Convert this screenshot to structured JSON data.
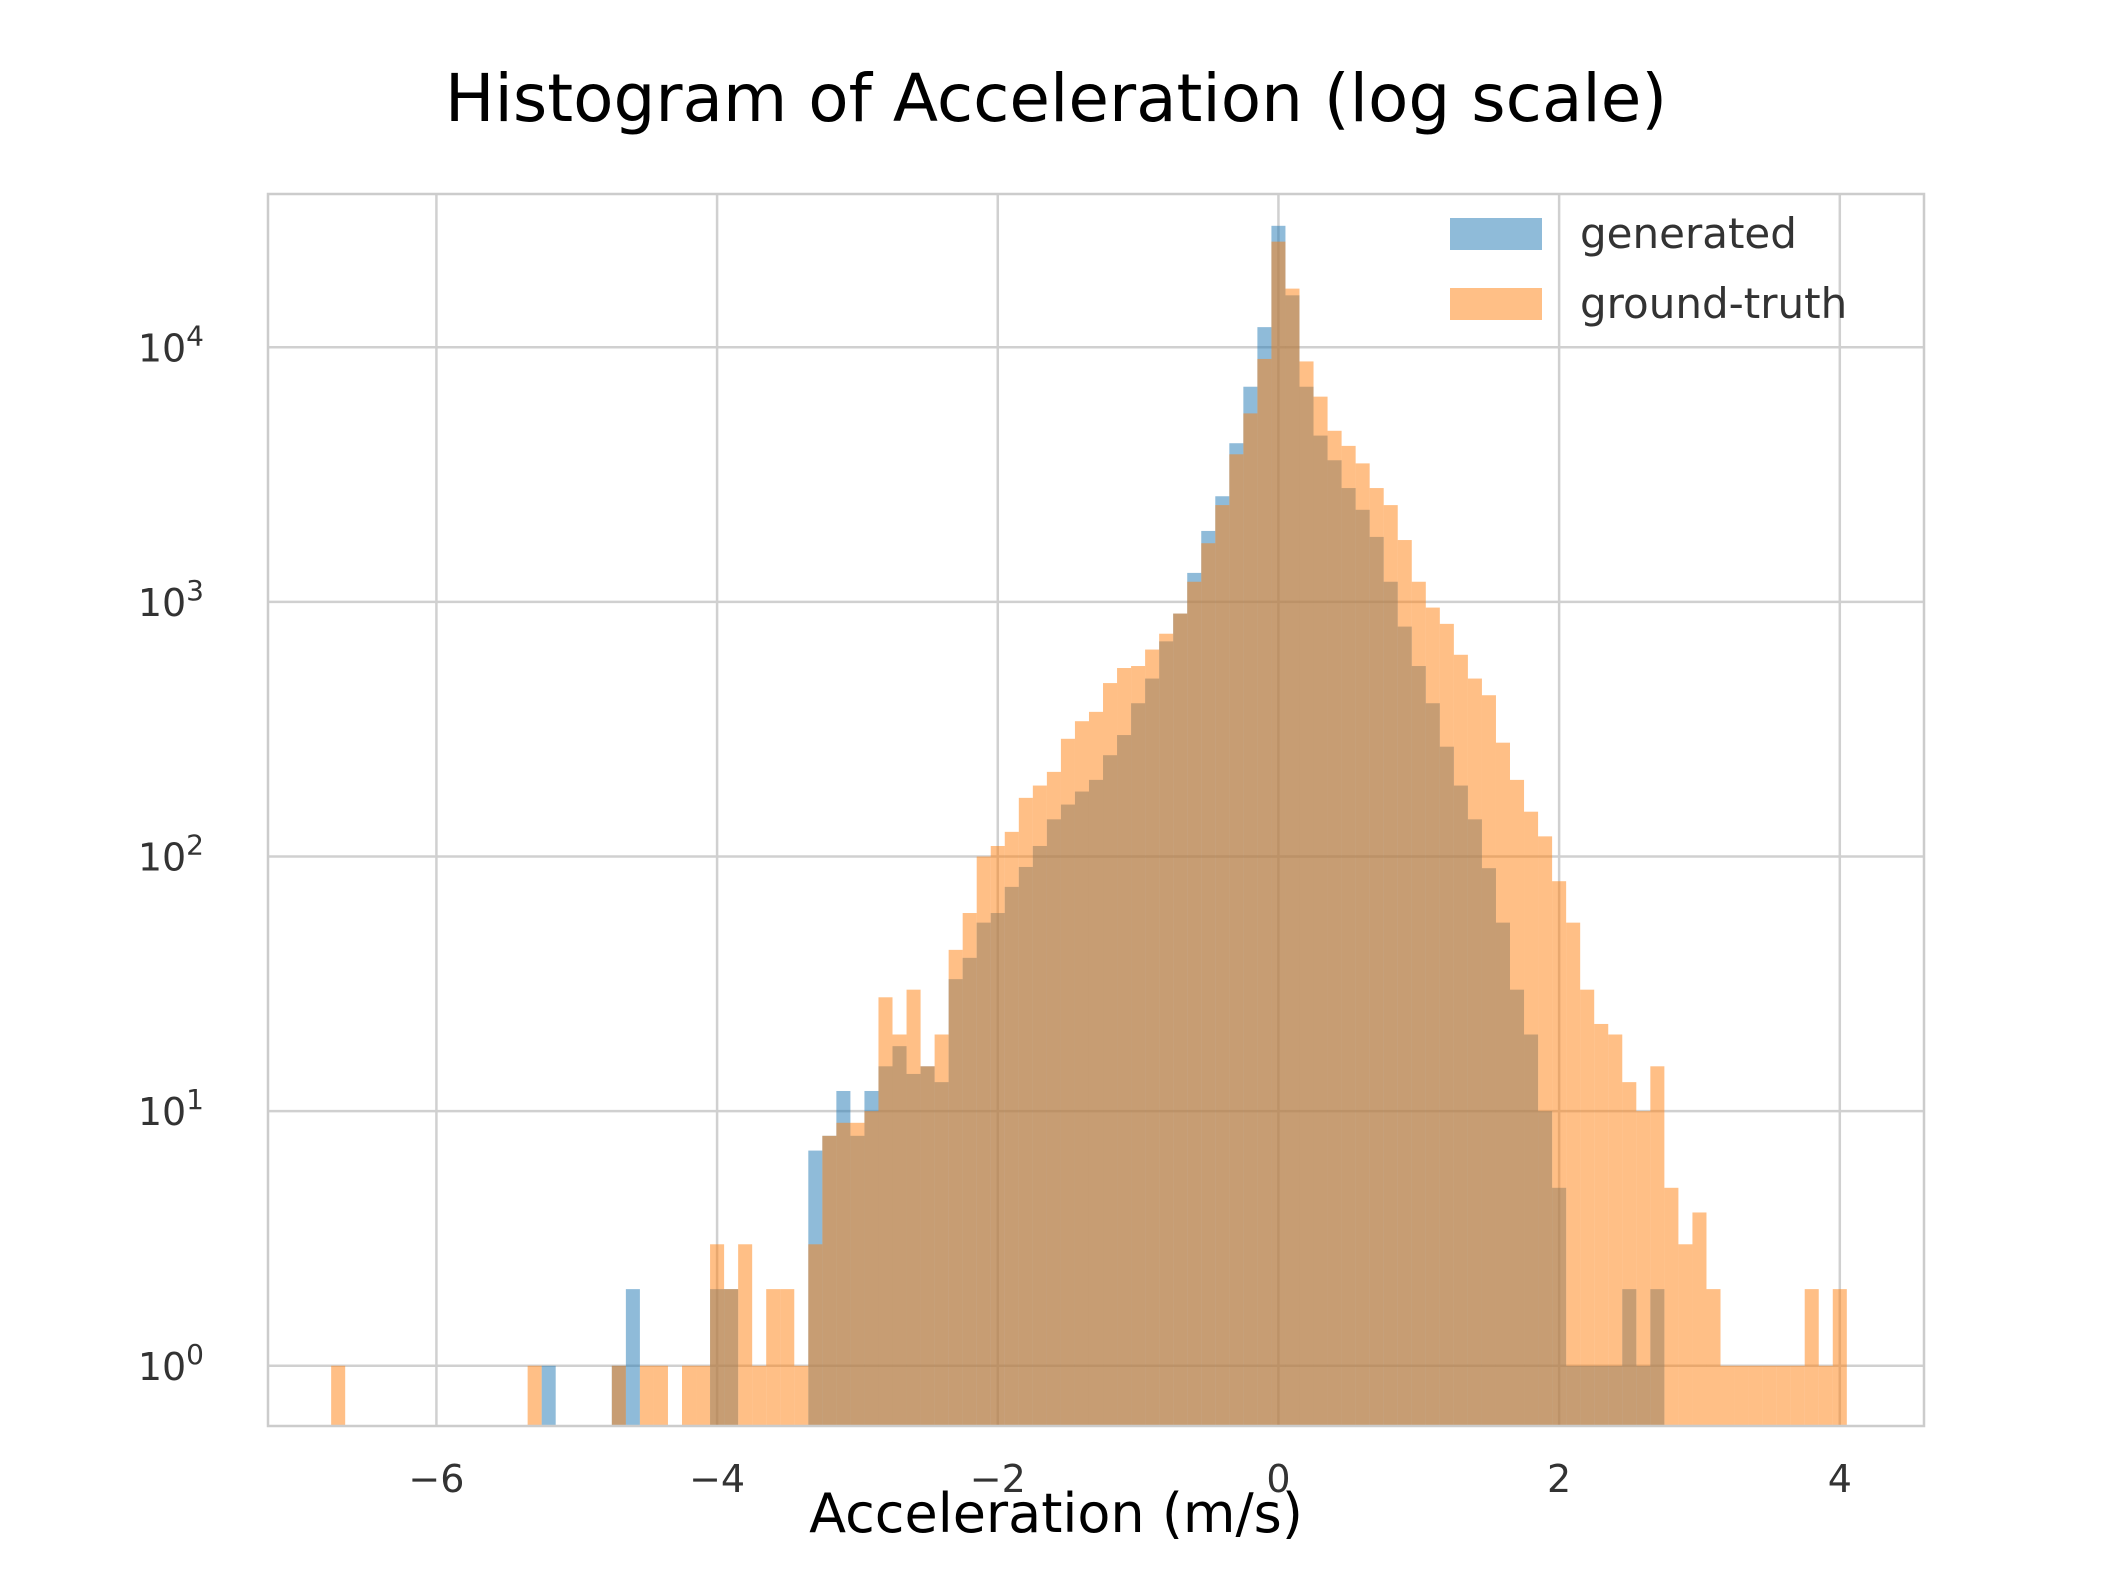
{
  "chart_data": {
    "type": "bar",
    "title": "Histogram of Acceleration (log scale)",
    "xlabel": "Acceleration (m/s)",
    "ylabel": "",
    "xlim": [
      -7.2,
      4.6
    ],
    "ylim": [
      0.58,
      40000
    ],
    "y_scale": "log",
    "grid": true,
    "legend_position": "top-right",
    "bin_width": 0.1,
    "x_ticks": [
      {
        "value": -6,
        "label": "−6"
      },
      {
        "value": -4,
        "label": "−4"
      },
      {
        "value": -2,
        "label": "−2"
      },
      {
        "value": 0,
        "label": "0"
      },
      {
        "value": 2,
        "label": "2"
      },
      {
        "value": 4,
        "label": "4"
      }
    ],
    "y_ticks": [
      {
        "value": 1,
        "base": "10",
        "exp": "0"
      },
      {
        "value": 10,
        "base": "10",
        "exp": "1"
      },
      {
        "value": 100,
        "base": "10",
        "exp": "2"
      },
      {
        "value": 1000,
        "base": "10",
        "exp": "3"
      },
      {
        "value": 10000,
        "base": "10",
        "exp": "4"
      }
    ],
    "series": [
      {
        "name": "generated",
        "color": "#1f77b4",
        "bins": [
          [
            -5.2,
            1
          ],
          [
            -4.7,
            1
          ],
          [
            -4.6,
            2
          ],
          [
            -4.0,
            2
          ],
          [
            -3.9,
            2
          ],
          [
            -3.3,
            7
          ],
          [
            -3.2,
            8
          ],
          [
            -3.1,
            12
          ],
          [
            -3.0,
            8
          ],
          [
            -2.9,
            12
          ],
          [
            -2.8,
            15
          ],
          [
            -2.7,
            18
          ],
          [
            -2.6,
            14
          ],
          [
            -2.5,
            15
          ],
          [
            -2.4,
            13
          ],
          [
            -2.3,
            33
          ],
          [
            -2.2,
            40
          ],
          [
            -2.1,
            55
          ],
          [
            -2.0,
            60
          ],
          [
            -1.9,
            76
          ],
          [
            -1.8,
            91
          ],
          [
            -1.7,
            110
          ],
          [
            -1.6,
            140
          ],
          [
            -1.5,
            160
          ],
          [
            -1.4,
            180
          ],
          [
            -1.3,
            200
          ],
          [
            -1.2,
            250
          ],
          [
            -1.1,
            300
          ],
          [
            -1.0,
            400
          ],
          [
            -0.9,
            500
          ],
          [
            -0.8,
            700
          ],
          [
            -0.7,
            900
          ],
          [
            -0.6,
            1300
          ],
          [
            -0.5,
            1900
          ],
          [
            -0.4,
            2600
          ],
          [
            -0.3,
            4200
          ],
          [
            -0.2,
            7000
          ],
          [
            -0.1,
            12000
          ],
          [
            0.0,
            30000
          ],
          [
            0.1,
            16000
          ],
          [
            0.2,
            7000
          ],
          [
            0.3,
            4500
          ],
          [
            0.4,
            3600
          ],
          [
            0.5,
            2800
          ],
          [
            0.6,
            2300
          ],
          [
            0.7,
            1800
          ],
          [
            0.8,
            1200
          ],
          [
            0.9,
            800
          ],
          [
            1.0,
            560
          ],
          [
            1.1,
            400
          ],
          [
            1.2,
            270
          ],
          [
            1.3,
            190
          ],
          [
            1.4,
            140
          ],
          [
            1.5,
            90
          ],
          [
            1.6,
            55
          ],
          [
            1.7,
            30
          ],
          [
            1.8,
            20
          ],
          [
            1.9,
            10
          ],
          [
            2.0,
            5
          ],
          [
            2.1,
            1
          ],
          [
            2.2,
            1
          ],
          [
            2.3,
            1
          ],
          [
            2.4,
            1
          ],
          [
            2.5,
            2
          ],
          [
            2.6,
            1
          ],
          [
            2.7,
            2
          ]
        ]
      },
      {
        "name": "ground-truth",
        "color": "#ff7f0e",
        "bins": [
          [
            -6.7,
            1
          ],
          [
            -5.3,
            1
          ],
          [
            -4.7,
            1
          ],
          [
            -4.5,
            1
          ],
          [
            -4.4,
            1
          ],
          [
            -4.2,
            1
          ],
          [
            -4.1,
            1
          ],
          [
            -4.0,
            3
          ],
          [
            -3.9,
            2
          ],
          [
            -3.8,
            3
          ],
          [
            -3.7,
            1
          ],
          [
            -3.6,
            2
          ],
          [
            -3.5,
            2
          ],
          [
            -3.4,
            1
          ],
          [
            -3.3,
            3
          ],
          [
            -3.2,
            8
          ],
          [
            -3.1,
            9
          ],
          [
            -3.0,
            9
          ],
          [
            -2.9,
            10
          ],
          [
            -2.8,
            28
          ],
          [
            -2.7,
            20
          ],
          [
            -2.6,
            30
          ],
          [
            -2.5,
            15
          ],
          [
            -2.4,
            20
          ],
          [
            -2.3,
            43
          ],
          [
            -2.2,
            60
          ],
          [
            -2.1,
            100
          ],
          [
            -2.0,
            110
          ],
          [
            -1.9,
            125
          ],
          [
            -1.8,
            170
          ],
          [
            -1.7,
            190
          ],
          [
            -1.6,
            215
          ],
          [
            -1.5,
            290
          ],
          [
            -1.4,
            340
          ],
          [
            -1.3,
            370
          ],
          [
            -1.2,
            480
          ],
          [
            -1.1,
            550
          ],
          [
            -1.0,
            560
          ],
          [
            -0.9,
            650
          ],
          [
            -0.8,
            750
          ],
          [
            -0.7,
            900
          ],
          [
            -0.6,
            1200
          ],
          [
            -0.5,
            1700
          ],
          [
            -0.4,
            2400
          ],
          [
            -0.3,
            3800
          ],
          [
            -0.2,
            5500
          ],
          [
            -0.1,
            9000
          ],
          [
            0.0,
            26000
          ],
          [
            0.1,
            17000
          ],
          [
            0.2,
            8800
          ],
          [
            0.3,
            6400
          ],
          [
            0.4,
            4700
          ],
          [
            0.5,
            4100
          ],
          [
            0.6,
            3500
          ],
          [
            0.7,
            2800
          ],
          [
            0.8,
            2400
          ],
          [
            0.9,
            1750
          ],
          [
            1.0,
            1200
          ],
          [
            1.1,
            950
          ],
          [
            1.2,
            820
          ],
          [
            1.3,
            620
          ],
          [
            1.4,
            500
          ],
          [
            1.5,
            430
          ],
          [
            1.6,
            280
          ],
          [
            1.7,
            200
          ],
          [
            1.8,
            150
          ],
          [
            1.9,
            120
          ],
          [
            2.0,
            80
          ],
          [
            2.1,
            55
          ],
          [
            2.2,
            30
          ],
          [
            2.3,
            22
          ],
          [
            2.4,
            20
          ],
          [
            2.5,
            13
          ],
          [
            2.6,
            10
          ],
          [
            2.7,
            15
          ],
          [
            2.8,
            5
          ],
          [
            2.9,
            3
          ],
          [
            3.0,
            4
          ],
          [
            3.1,
            2
          ],
          [
            3.2,
            1
          ],
          [
            3.3,
            1
          ],
          [
            3.4,
            1
          ],
          [
            3.5,
            1
          ],
          [
            3.6,
            1
          ],
          [
            3.7,
            1
          ],
          [
            3.8,
            2
          ],
          [
            3.9,
            1
          ],
          [
            4.0,
            2
          ]
        ]
      }
    ]
  }
}
